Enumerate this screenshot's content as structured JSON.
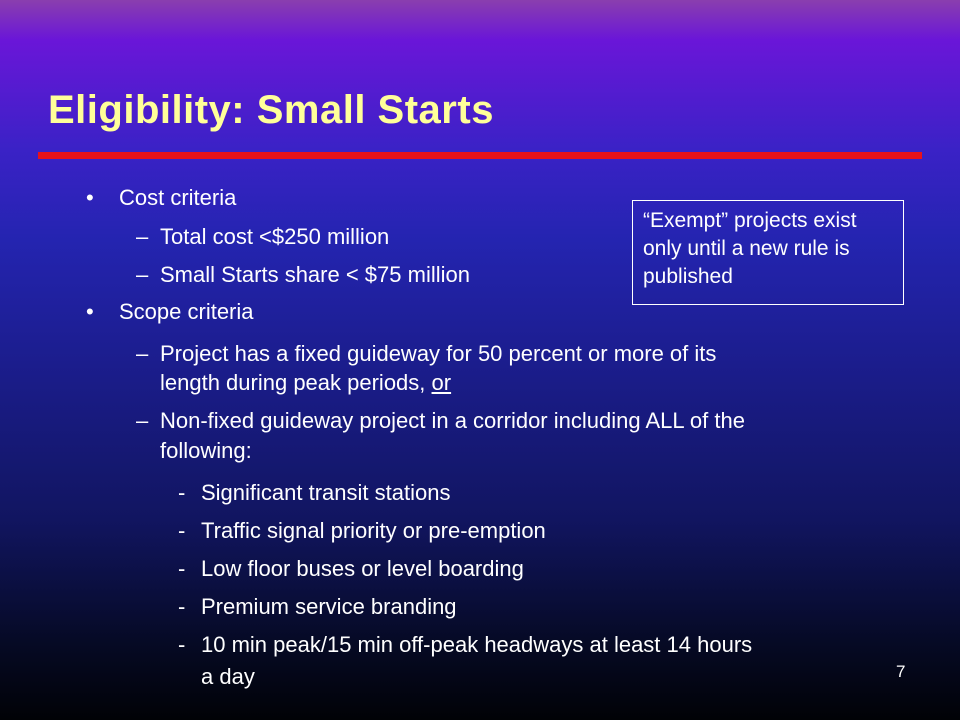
{
  "slide": {
    "title": "Eligibility: Small Starts",
    "page_number": "7",
    "callout": "“Exempt” projects exist only until a new rule is published",
    "bullet_char": "•",
    "dash_char": "–",
    "hyphen_char": "-",
    "cost": {
      "heading": "Cost criteria",
      "items": [
        "Total cost <$250 million",
        "Small Starts share < $75 million"
      ]
    },
    "scope": {
      "heading": "Scope criteria",
      "item1_line1": "Project has a fixed guideway for 50 percent or more of its",
      "item1_line2_pre": "length during peak periods, ",
      "item1_line2_link": "or",
      "item2_line1": "Non-fixed guideway project in a corridor including ALL of the",
      "item2_line2": "following:",
      "subitems": [
        "Significant transit stations",
        "Traffic signal priority or pre-emption",
        "Low floor buses or level boarding",
        "Premium service branding",
        "10 min peak/15 min off-peak headways at least 14 hours"
      ],
      "subitem_last_line2": "a day"
    }
  },
  "colors": {
    "title": "#ffff99",
    "rule": "#e8121a",
    "text": "#ffffff"
  }
}
